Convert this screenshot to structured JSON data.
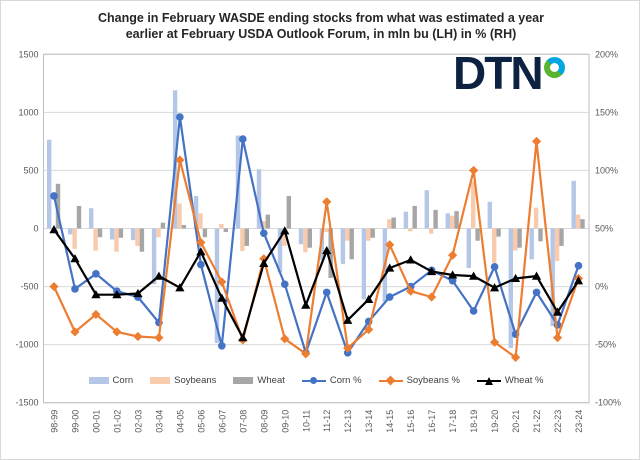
{
  "title": {
    "line1": "Change in February WASDE ending stocks  from what was estimated a year",
    "line2": "earlier at February USDA Outlook Forum, in mln bu (LH) in % (RH)"
  },
  "logo": {
    "text": "DTN"
  },
  "axes": {
    "left_ticks": [
      "1500",
      "1000",
      "500",
      "0",
      "-500",
      "-1000",
      "-1500"
    ],
    "right_ticks": [
      "200%",
      "150%",
      "100%",
      "50%",
      "0%",
      "-50%",
      "-100%"
    ]
  },
  "legend": {
    "items": [
      "Corn",
      "Soybeans",
      "Wheat",
      "Corn %",
      "Soybeans %",
      "Wheat %"
    ]
  },
  "colors": {
    "corn_bar": "#b4c7e7",
    "soybeans_bar": "#f8cbad",
    "wheat_bar": "#a6a6a6",
    "corn_line": "#4472c4",
    "soybeans_line": "#ed7d31",
    "wheat_line": "#000000",
    "grid": "#d9d9d9",
    "plot_border": "#bfbfbf",
    "tick_text": "#595959"
  },
  "chart_data": {
    "type": "combo bar+line",
    "title": "Change in February WASDE ending stocks from what was estimated a year earlier at February USDA Outlook Forum, in mln bu (LH) in % (RH)",
    "categories": [
      "98-99",
      "99-00",
      "00-01",
      "01-02",
      "02-03",
      "03-04",
      "04-05",
      "05-06",
      "06-07",
      "07-08",
      "08-09",
      "09-10",
      "10-11",
      "11-12",
      "12-13",
      "13-14",
      "14-15",
      "15-16",
      "16-17",
      "17-18",
      "18-19",
      "19-20",
      "20-21",
      "21-22",
      "22-23",
      "23-24"
    ],
    "ylim_left": [
      -1500,
      1500
    ],
    "ylim_right": [
      -100,
      200
    ],
    "grid": true,
    "legend_position": "bottom",
    "series": [
      {
        "name": "Corn",
        "type": "bar",
        "axis": "left",
        "values": [
          765,
          -50,
          175,
          -95,
          -100,
          -480,
          1190,
          280,
          -985,
          800,
          510,
          -375,
          -135,
          -270,
          -305,
          -610,
          -630,
          145,
          330,
          130,
          -340,
          230,
          -1030,
          -265,
          -840,
          410
        ]
      },
      {
        "name": "Soybeans",
        "type": "bar",
        "axis": "left",
        "values": [
          -40,
          -175,
          -190,
          -200,
          -150,
          -75,
          215,
          130,
          40,
          -195,
          65,
          -150,
          -205,
          -30,
          -105,
          -105,
          80,
          -25,
          -45,
          110,
          405,
          -295,
          -190,
          180,
          -280,
          120
        ]
      },
      {
        "name": "Wheat",
        "type": "bar",
        "axis": "left",
        "values": [
          385,
          195,
          -75,
          -80,
          -200,
          50,
          30,
          -75,
          -30,
          -150,
          120,
          280,
          -165,
          -425,
          -265,
          -80,
          95,
          195,
          160,
          150,
          -105,
          -70,
          -165,
          -110,
          -150,
          80
        ]
      },
      {
        "name": "Corn %",
        "type": "line",
        "axis": "right",
        "marker": "circle",
        "values": [
          78,
          -2,
          11,
          -4,
          -9,
          -31,
          146,
          19,
          -51,
          127,
          46,
          2,
          -57,
          -5,
          -57,
          -30,
          -9,
          0,
          14,
          5,
          -21,
          17,
          -41,
          -5,
          -33,
          18
        ]
      },
      {
        "name": "Soybeans %",
        "type": "line",
        "axis": "right",
        "marker": "diamond",
        "values": [
          0,
          -39,
          -24,
          -39,
          -43,
          -44,
          109,
          38,
          4,
          -46,
          24,
          -45,
          -58,
          73,
          -53,
          -37,
          36,
          -4,
          -9,
          27,
          100,
          -48,
          -61,
          125,
          -44,
          7
        ]
      },
      {
        "name": "Wheat %",
        "type": "line",
        "axis": "right",
        "marker": "triangle",
        "values": [
          49,
          24,
          -7,
          -7,
          -6,
          9,
          -1,
          30,
          -10,
          -44,
          20,
          48,
          -16,
          31,
          -29,
          -11,
          16,
          23,
          13,
          10,
          9,
          -1,
          7,
          9,
          -22,
          5
        ]
      }
    ]
  }
}
